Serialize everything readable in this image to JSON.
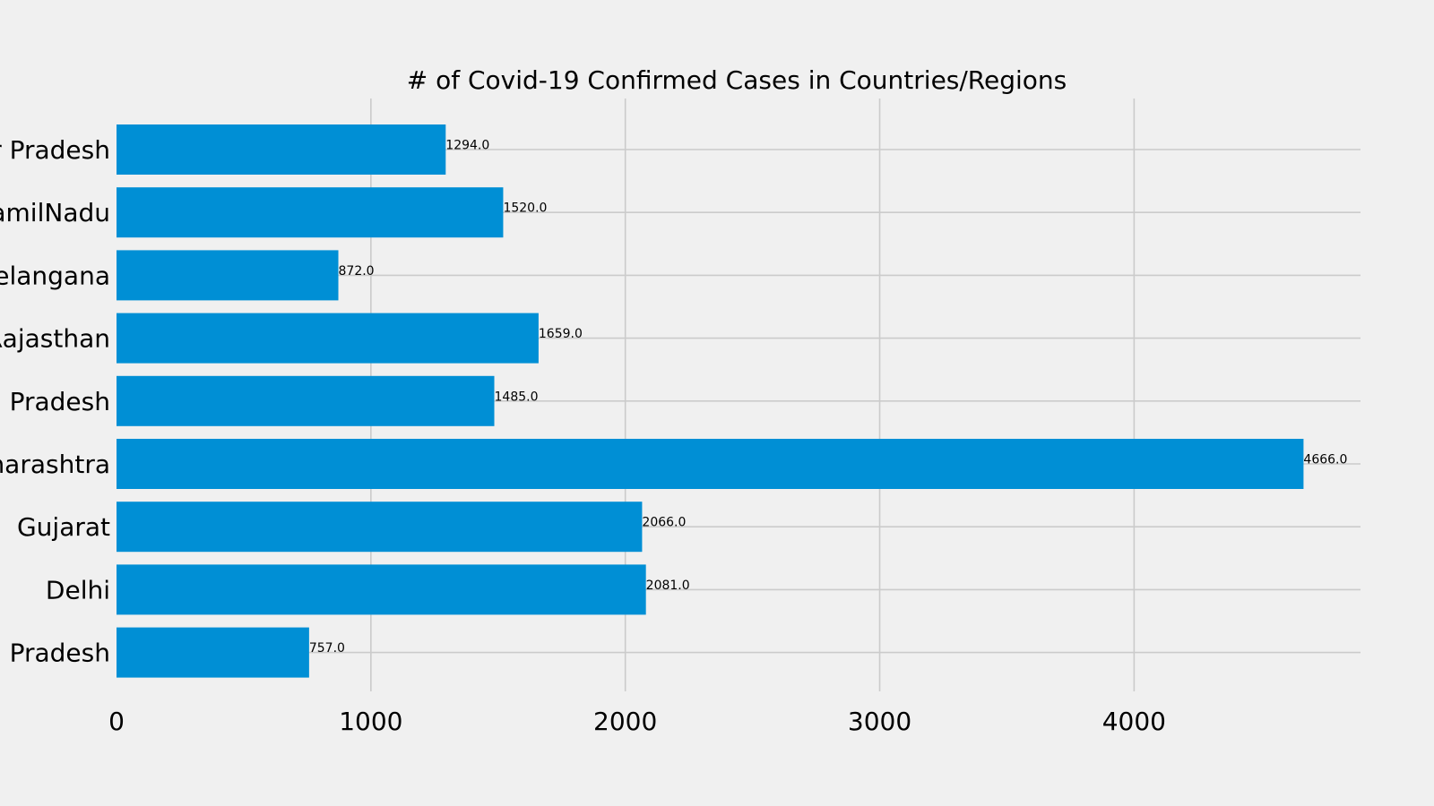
{
  "chart_data": {
    "type": "bar",
    "orientation": "horizontal",
    "title": "# of Covid-19 Confirmed Cases in Countries/Regions",
    "xlabel": "",
    "ylabel": "",
    "categories": [
      "r Pradesh",
      "amilNadu",
      "elangana",
      "Rajasthan",
      "Pradesh",
      "harashtra",
      "Gujarat",
      "Delhi",
      "Pradesh"
    ],
    "values": [
      1294.0,
      1520.0,
      872.0,
      1659.0,
      1485.0,
      4666.0,
      2066.0,
      2081.0,
      757.0
    ],
    "value_labels": [
      "1294.0",
      "1520.0",
      "872.0",
      "1659.0",
      "1485.0",
      "4666.0",
      "2066.0",
      "2081.0",
      "757.0"
    ],
    "xticks": [
      0,
      1000,
      2000,
      3000,
      4000
    ],
    "xtick_labels": [
      "0",
      "1000",
      "2000",
      "3000",
      "4000"
    ],
    "xlim": [
      0,
      4890
    ],
    "grid": true,
    "legend": "none",
    "colors": {
      "bar": "#008fd5",
      "background": "#f0f0f0",
      "grid": "#cbcbcb",
      "text": "#000000"
    }
  }
}
